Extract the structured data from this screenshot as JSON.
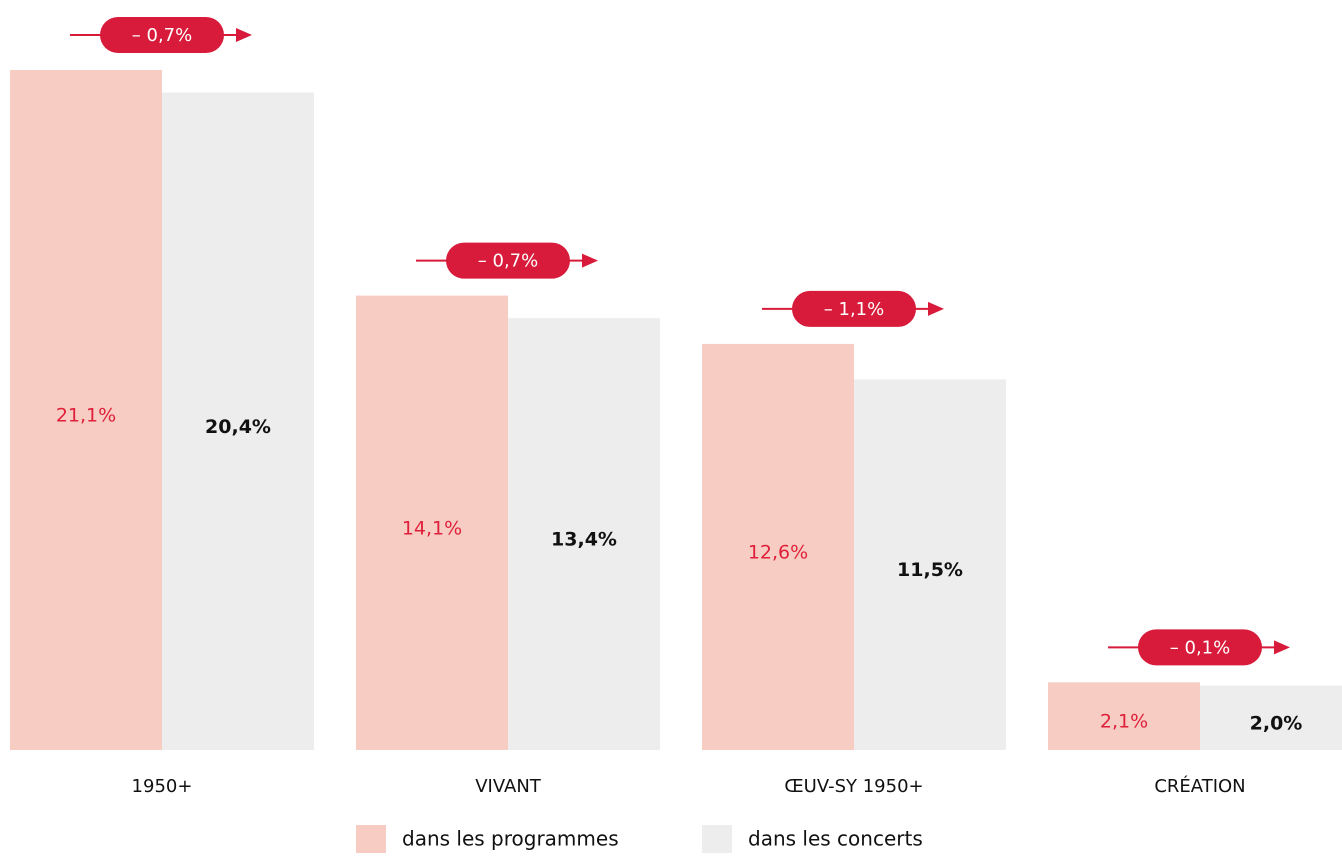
{
  "chart_data": {
    "type": "bar",
    "categories": [
      "1950+",
      "VIVANT",
      "ŒUV-SY 1950+",
      "CRÉATION"
    ],
    "series": [
      {
        "name": "dans les programmes",
        "color": "#f7cdc3",
        "label_color": "#e0203a",
        "values": [
          21.1,
          14.1,
          12.6,
          2.1
        ],
        "value_labels": [
          "21,1%",
          "14,1%",
          "12,6%",
          "2,1%"
        ]
      },
      {
        "name": "dans les concerts",
        "color": "#ededed",
        "label_color": "#111111",
        "values": [
          20.4,
          13.4,
          11.5,
          2.0
        ],
        "value_labels": [
          "20,4%",
          "13,4%",
          "11,5%",
          "2,0%"
        ]
      }
    ],
    "annotations": [
      "– 0,7%",
      "– 0,7%",
      "– 1,1%",
      "– 0,1%"
    ],
    "annotation_color": "#d81b3a"
  }
}
